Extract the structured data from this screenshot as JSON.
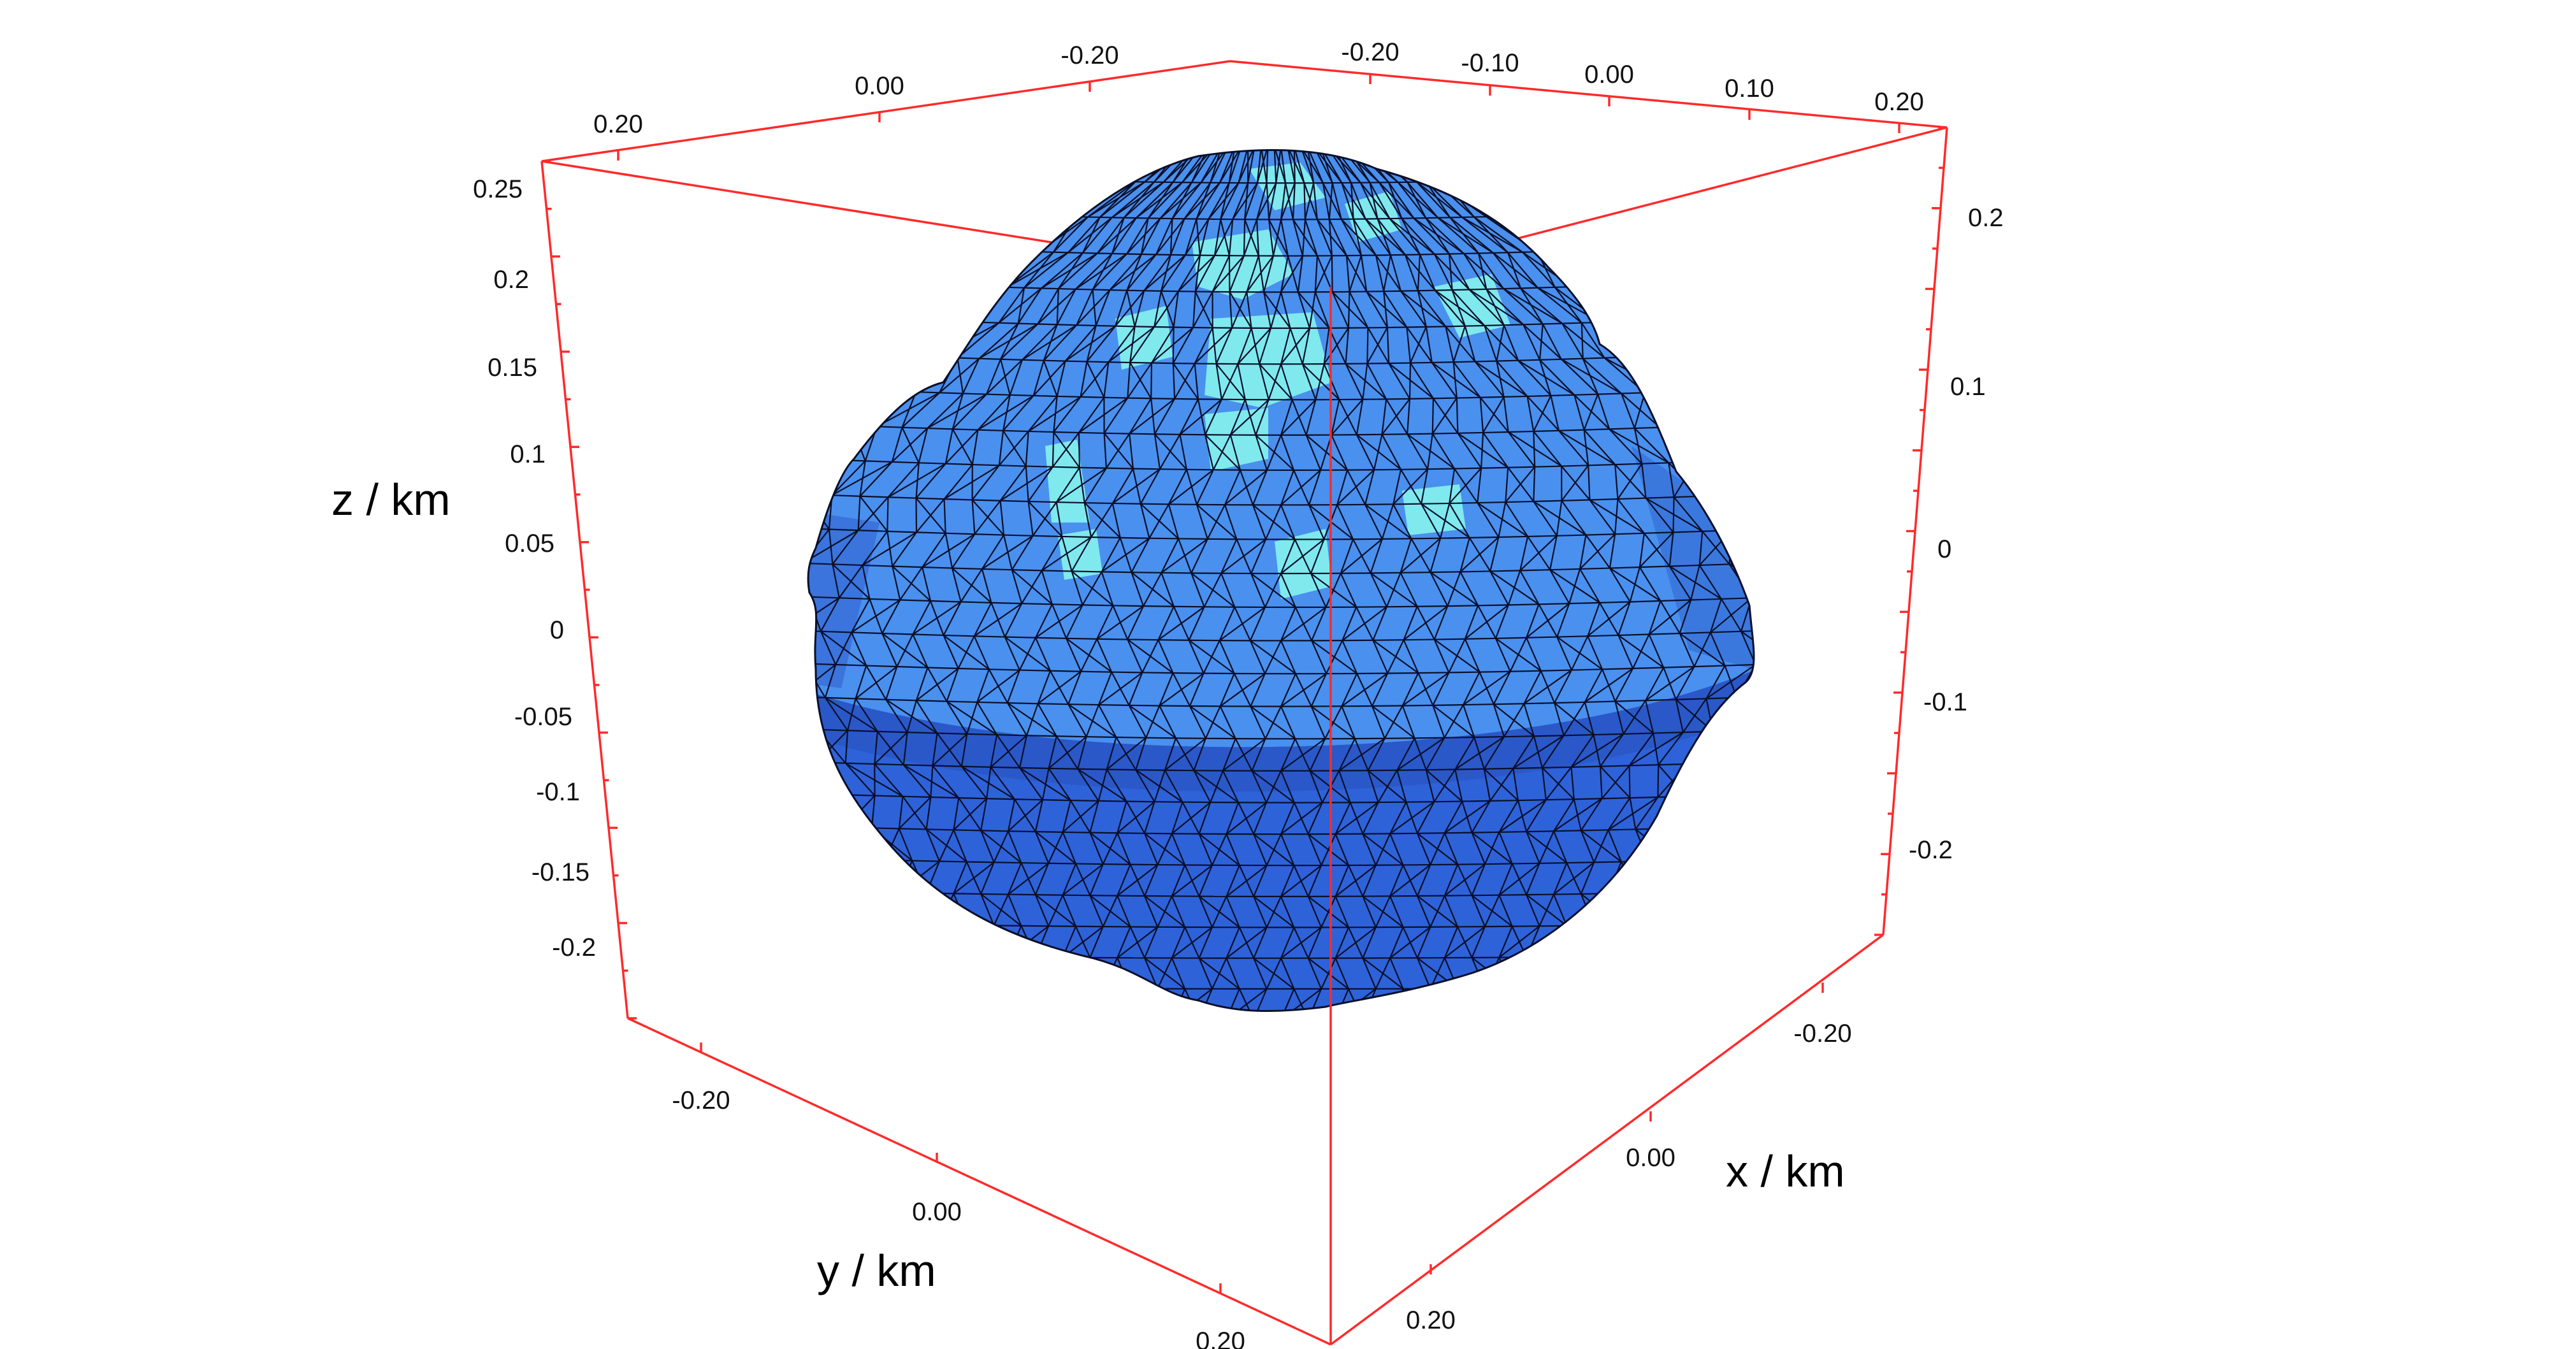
{
  "figure": {
    "axes": {
      "x_title": "x / km",
      "y_title": "y / km",
      "z_title": "z / km",
      "z_ticks_left": [
        "0.25",
        "0.2",
        "0.15",
        "0.1",
        "0.05",
        "0",
        "-0.05",
        "-0.1",
        "-0.15",
        "-0.2"
      ],
      "z_ticks_right": [
        "0.2",
        "0.1",
        "0",
        "-0.1",
        "-0.2"
      ],
      "y_ticks_bottom": [
        "-0.20",
        "0.00",
        "0.20"
      ],
      "x_ticks_bottom": [
        "-0.20",
        "0.00",
        "0.20"
      ],
      "top_back_ticks_left": [
        "0.20",
        "0.00",
        "-0.20"
      ],
      "top_back_ticks_right": [
        "-0.20",
        "-0.10",
        "0.00",
        "0.10",
        "0.20"
      ]
    },
    "colors": {
      "box": "#ff2a2a",
      "mesh_light": "#4a90ee",
      "mesh_dark": "#2e62d8",
      "mesh_highlight": "#7fe9ee",
      "mesh_edge": "#0a0f2a"
    }
  }
}
